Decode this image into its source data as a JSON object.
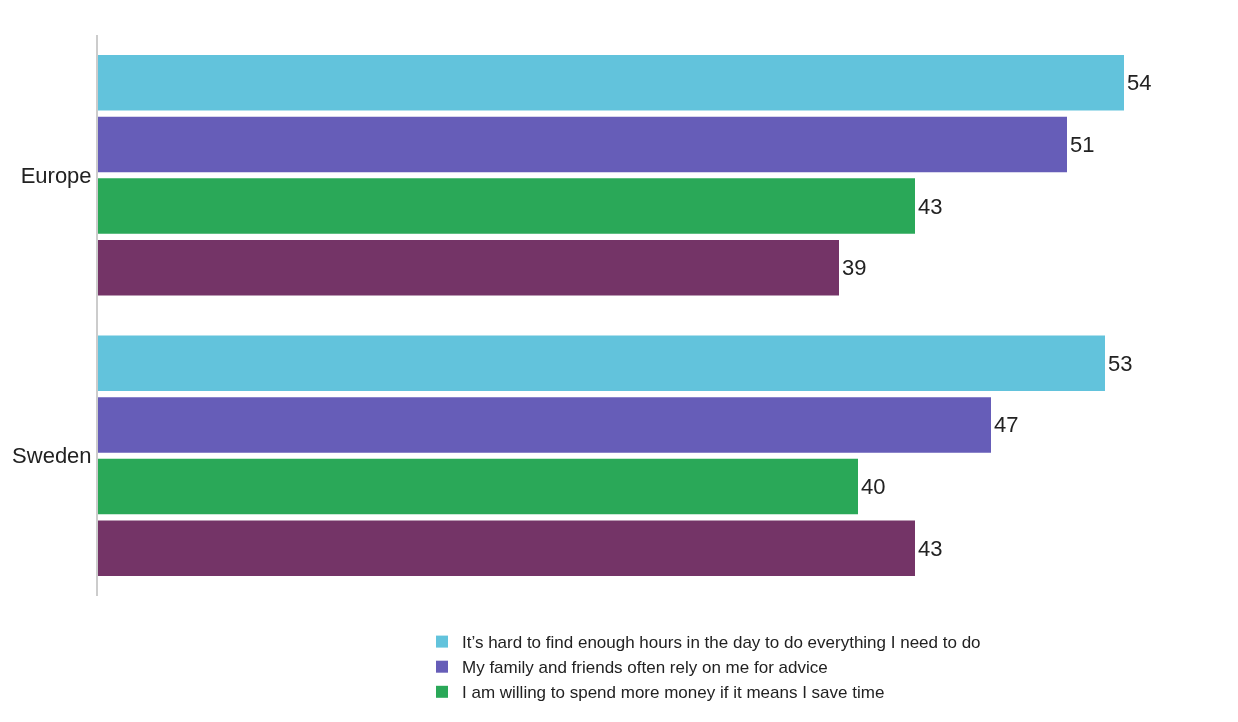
{
  "chart_data": {
    "type": "bar",
    "orientation": "horizontal",
    "categories": [
      "Europe",
      "Sweden"
    ],
    "series": [
      {
        "name": "It’s hard to find enough hours in the day to do everything I need to do",
        "color": "#62c3dc",
        "values": [
          54,
          53
        ]
      },
      {
        "name": "My family and friends often rely on me for advice",
        "color": "#665db8",
        "values": [
          51,
          47
        ]
      },
      {
        "name": "I am willing to spend more money if it means I save time",
        "color": "#2aa858",
        "values": [
          43,
          40
        ]
      },
      {
        "color": "#743467",
        "values": [
          39,
          43
        ]
      }
    ],
    "data_labels": true,
    "legend": "bottom"
  }
}
